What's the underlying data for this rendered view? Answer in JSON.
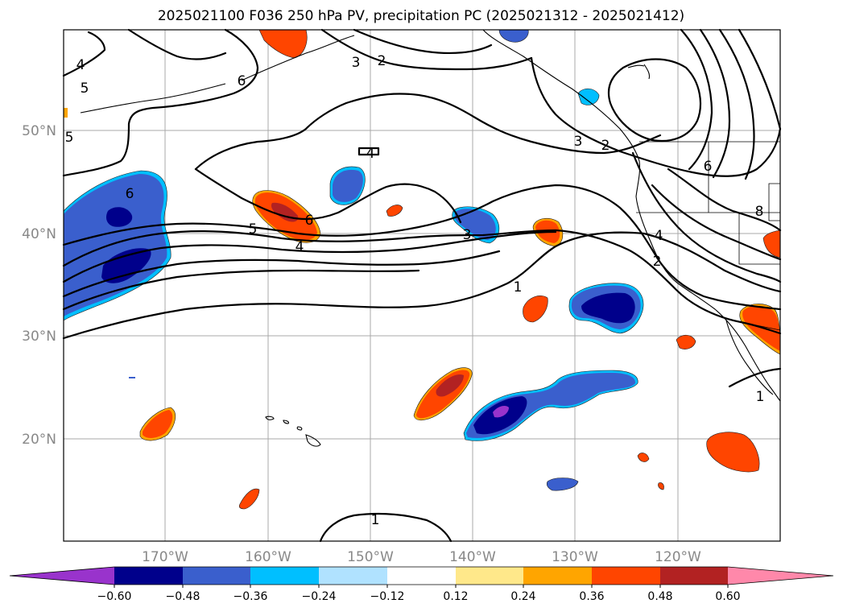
{
  "title": "2025021100 F036 250 hPa PV, precipitation PC (2025021312 - 2025021412)",
  "lat_labels": [
    "20°N",
    "30°N",
    "40°N",
    "50°N"
  ],
  "lon_labels": [
    "170°W",
    "160°W",
    "150°W",
    "140°W",
    "130°W",
    "120°W"
  ],
  "contour_labels": [
    "4",
    "5",
    "6",
    "6",
    "5",
    "4",
    "4",
    "3",
    "3",
    "2",
    "3",
    "2",
    "6",
    "8",
    "4",
    "2",
    "1",
    "1",
    "1",
    "6",
    "5"
  ],
  "colorbar": {
    "ticks": [
      "−0.60",
      "−0.48",
      "−0.36",
      "−0.24",
      "−0.12",
      "0.12",
      "0.24",
      "0.36",
      "0.48",
      "0.60"
    ],
    "colors": [
      "#9933cc",
      "#00008b",
      "#3a5fcd",
      "#00bfff",
      "#b0e2ff",
      "#ffffff",
      "#ffe88a",
      "#ffa500",
      "#ff4500",
      "#b22222",
      "#ff88aa"
    ]
  }
}
